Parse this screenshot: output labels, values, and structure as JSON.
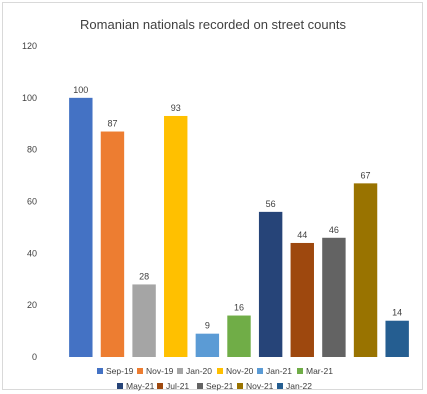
{
  "chart_data": {
    "type": "bar",
    "title": "Romanian nationals recorded on street counts",
    "xlabel": "",
    "ylabel": "",
    "ylim": [
      0,
      120
    ],
    "yticks": [
      0,
      20,
      40,
      60,
      80,
      100,
      120
    ],
    "grid": false,
    "legend_position": "bottom",
    "categories": [
      "Sep-19",
      "Nov-19",
      "Jan-20",
      "Nov-20",
      "Jan-21",
      "Mar-21",
      "May-21",
      "Jul-21",
      "Sep-21",
      "Nov-21",
      "Jan-22"
    ],
    "values": [
      100,
      87,
      28,
      93,
      9,
      16,
      56,
      44,
      46,
      67,
      14
    ],
    "colors": [
      "#4472c4",
      "#ed7d31",
      "#a5a5a5",
      "#ffc000",
      "#5b9bd5",
      "#70ad47",
      "#264478",
      "#9e480e",
      "#636363",
      "#997300",
      "#255e91"
    ]
  }
}
